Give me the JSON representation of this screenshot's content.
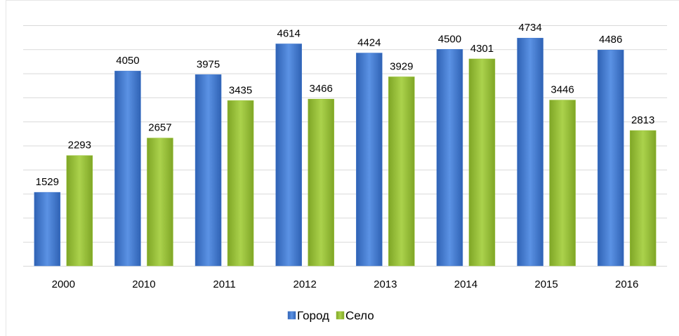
{
  "chart_data": {
    "type": "bar",
    "categories": [
      "2000",
      "2010",
      "2011",
      "2012",
      "2013",
      "2014",
      "2015",
      "2016"
    ],
    "series": [
      {
        "name": "Город",
        "color": "#4a7fd0",
        "values": [
          1529,
          4050,
          3975,
          4614,
          4424,
          4500,
          4734,
          4486
        ]
      },
      {
        "name": "Село",
        "color": "#9bc43b",
        "values": [
          2293,
          2657,
          3435,
          3466,
          3929,
          4301,
          3446,
          2813
        ]
      }
    ],
    "ylim": [
      0,
      5000
    ],
    "yticks": [
      0,
      500,
      1000,
      1500,
      2000,
      2500,
      3000,
      3500,
      4000,
      4500,
      5000
    ],
    "grid": true,
    "legend": "bottom"
  }
}
